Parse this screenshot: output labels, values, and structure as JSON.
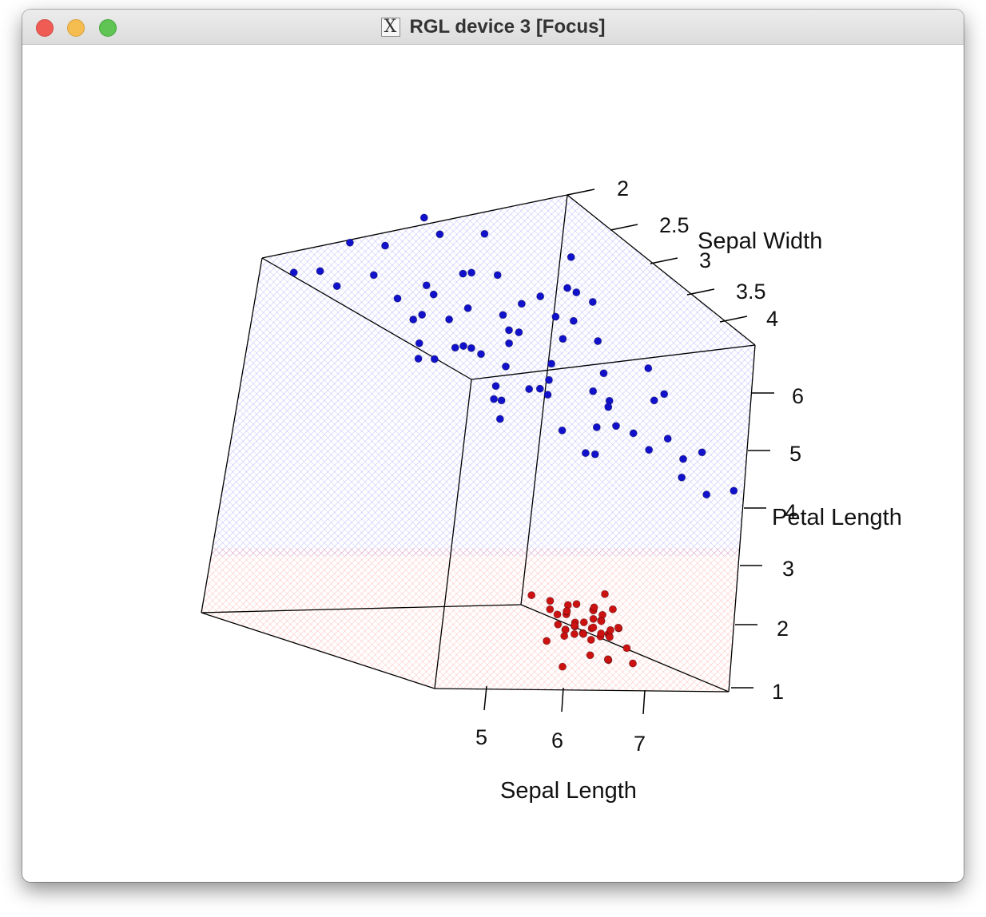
{
  "window": {
    "title": "RGL device 3 [Focus]",
    "app_icon": "x11-icon",
    "controls": [
      "close",
      "minimize",
      "maximize"
    ]
  },
  "chart_data": {
    "type": "scatter",
    "view": "3d",
    "axes": {
      "x": {
        "label": "Sepal Length",
        "ticks": [
          "5",
          "6",
          "7"
        ],
        "range": [
          4.3,
          7.9
        ]
      },
      "y": {
        "label": "Sepal Width",
        "ticks": [
          "2",
          "2.5",
          "3",
          "3.5",
          "4"
        ],
        "range": [
          2.0,
          4.4
        ]
      },
      "z": {
        "label": "Petal Length",
        "ticks": [
          "1",
          "2",
          "3",
          "4",
          "5",
          "6"
        ],
        "range": [
          1.0,
          6.9
        ]
      }
    },
    "surfaces": [
      {
        "region": "upper",
        "color": "#7b7bff"
      },
      {
        "region": "lower",
        "color": "#ff7b7b"
      }
    ],
    "series": [
      {
        "color": "#1111cc",
        "points": [
          [
            5.8,
            2.6,
            6.7
          ],
          [
            6.1,
            2.4,
            6.6
          ],
          [
            6.6,
            2.3,
            6.4
          ],
          [
            6.9,
            2.2,
            6.4
          ],
          [
            6.0,
            2.7,
            6.2
          ],
          [
            5.6,
            2.6,
            6.1
          ],
          [
            6.3,
            2.9,
            6.3
          ],
          [
            7.1,
            2.7,
            6.2
          ],
          [
            7.4,
            2.6,
            6.0
          ],
          [
            6.8,
            3.0,
            6.2
          ],
          [
            5.0,
            2.8,
            6.0
          ],
          [
            5.5,
            3.0,
            6.0
          ],
          [
            5.2,
            3.1,
            6.1
          ],
          [
            4.9,
            3.0,
            5.9
          ],
          [
            5.7,
            3.0,
            5.9
          ],
          [
            6.2,
            2.9,
            5.8
          ],
          [
            6.4,
            2.7,
            5.9
          ],
          [
            6.0,
            3.1,
            5.8
          ],
          [
            5.4,
            3.3,
            5.8
          ],
          [
            5.9,
            3.2,
            5.6
          ],
          [
            6.5,
            3.0,
            5.7
          ],
          [
            6.7,
            2.8,
            5.6
          ],
          [
            5.1,
            3.3,
            5.5
          ],
          [
            5.6,
            3.4,
            5.6
          ],
          [
            6.1,
            3.3,
            5.5
          ],
          [
            5.8,
            3.5,
            5.3
          ],
          [
            6.3,
            3.2,
            5.3
          ],
          [
            5.3,
            3.6,
            5.2
          ],
          [
            5.5,
            3.7,
            5.0
          ],
          [
            6.0,
            3.6,
            5.0
          ],
          [
            4.9,
            3.8,
            4.9
          ],
          [
            5.2,
            3.6,
            4.8
          ],
          [
            5.7,
            3.4,
            4.8
          ],
          [
            6.2,
            3.3,
            4.7
          ],
          [
            5.4,
            3.9,
            4.6
          ],
          [
            5.9,
            3.8,
            4.5
          ],
          [
            4.8,
            3.9,
            4.4
          ],
          [
            5.1,
            4.0,
            4.3
          ],
          [
            5.6,
            3.9,
            4.2
          ],
          [
            6.4,
            3.5,
            5.0
          ],
          [
            4.6,
            4.1,
            4.3
          ],
          [
            4.9,
            4.2,
            4.0
          ],
          [
            4.7,
            4.3,
            3.8
          ],
          [
            5.4,
            4.1,
            4.6
          ],
          [
            5.0,
            4.0,
            5.1
          ],
          [
            6.6,
            3.2,
            5.4
          ],
          [
            6.9,
            3.1,
            5.2
          ],
          [
            5.3,
            3.0,
            5.7
          ],
          [
            4.7,
            3.5,
            5.2
          ],
          [
            5.8,
            3.0,
            5.0
          ],
          [
            6.1,
            2.8,
            5.2
          ],
          [
            5.5,
            3.2,
            4.9
          ],
          [
            5.0,
            3.4,
            4.6
          ],
          [
            4.6,
            3.9,
            4.1
          ],
          [
            6.3,
            2.5,
            5.5
          ],
          [
            6.7,
            2.6,
            5.8
          ],
          [
            5.7,
            2.5,
            5.0
          ],
          [
            5.2,
            2.7,
            4.5
          ],
          [
            6.0,
            2.4,
            4.8
          ],
          [
            5.6,
            2.8,
            4.4
          ],
          [
            4.9,
            3.2,
            4.2
          ],
          [
            5.3,
            3.5,
            4.0
          ],
          [
            5.9,
            3.1,
            4.3
          ],
          [
            4.5,
            4.4,
            3.9
          ],
          [
            5.1,
            2.9,
            6.5
          ],
          [
            6.4,
            2.5,
            6.9
          ],
          [
            7.7,
            2.4,
            6.1
          ],
          [
            7.2,
            2.2,
            6.0
          ],
          [
            5.4,
            2.6,
            5.3
          ],
          [
            6.5,
            2.7,
            5.2
          ]
        ]
      },
      {
        "color": "#cc1111",
        "points": [
          [
            4.3,
            3.0,
            1.1
          ],
          [
            4.4,
            2.9,
            1.4
          ],
          [
            4.4,
            3.0,
            1.3
          ],
          [
            4.5,
            2.3,
            1.3
          ],
          [
            4.6,
            3.1,
            1.5
          ],
          [
            4.6,
            3.4,
            1.4
          ],
          [
            4.6,
            3.6,
            1.0
          ],
          [
            4.7,
            3.2,
            1.3
          ],
          [
            4.7,
            3.2,
            1.6
          ],
          [
            4.8,
            3.0,
            1.4
          ],
          [
            4.8,
            3.4,
            1.6
          ],
          [
            4.8,
            3.1,
            1.6
          ],
          [
            4.9,
            3.0,
            1.4
          ],
          [
            4.9,
            3.1,
            1.5
          ],
          [
            4.9,
            3.6,
            1.4
          ],
          [
            5.0,
            3.0,
            1.6
          ],
          [
            5.0,
            3.3,
            1.4
          ],
          [
            5.0,
            3.4,
            1.5
          ],
          [
            5.0,
            3.5,
            1.3
          ],
          [
            5.0,
            3.6,
            1.4
          ],
          [
            5.1,
            3.5,
            1.4
          ],
          [
            5.1,
            3.8,
            1.5
          ],
          [
            5.1,
            3.7,
            1.5
          ],
          [
            5.1,
            3.3,
            1.7
          ],
          [
            5.2,
            3.5,
            1.5
          ],
          [
            5.2,
            4.1,
            1.5
          ],
          [
            5.2,
            3.4,
            1.4
          ],
          [
            5.3,
            3.7,
            1.5
          ],
          [
            5.4,
            3.9,
            1.7
          ],
          [
            5.4,
            3.7,
            1.5
          ],
          [
            5.4,
            3.4,
            1.7
          ],
          [
            5.4,
            3.9,
            1.3
          ],
          [
            5.5,
            4.2,
            1.4
          ],
          [
            5.5,
            3.5,
            1.3
          ],
          [
            5.7,
            4.4,
            1.5
          ],
          [
            5.7,
            3.8,
            1.7
          ],
          [
            5.8,
            4.0,
            1.2
          ],
          [
            5.1,
            3.4,
            1.5
          ],
          [
            5.0,
            3.2,
            1.2
          ],
          [
            4.8,
            3.4,
            1.9
          ],
          [
            4.9,
            3.1,
            1.5
          ],
          [
            5.1,
            3.8,
            1.9
          ],
          [
            5.0,
            3.5,
            1.6
          ],
          [
            5.1,
            3.8,
            1.6
          ],
          [
            4.6,
            3.2,
            1.4
          ],
          [
            5.3,
            3.7,
            1.5
          ],
          [
            5.0,
            3.3,
            1.4
          ],
          [
            4.4,
            3.2,
            1.3
          ],
          [
            5.2,
            3.4,
            1.4
          ],
          [
            5.5,
            4.2,
            1.4
          ]
        ]
      }
    ]
  }
}
